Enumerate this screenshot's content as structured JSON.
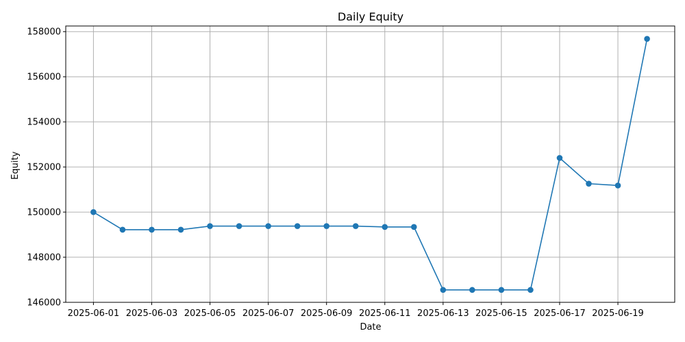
{
  "chart_data": {
    "type": "line",
    "title": "Daily Equity",
    "xlabel": "Date",
    "ylabel": "Equity",
    "grid": true,
    "ylim": [
      146000,
      158250
    ],
    "y_ticks": [
      146000,
      148000,
      150000,
      152000,
      154000,
      156000,
      158000
    ],
    "x_ticks": [
      "2025-06-01",
      "2025-06-03",
      "2025-06-05",
      "2025-06-07",
      "2025-06-09",
      "2025-06-11",
      "2025-06-13",
      "2025-06-15",
      "2025-06-17",
      "2025-06-19"
    ],
    "colors": {
      "series": "#1f77b4"
    },
    "series": [
      {
        "x": [
          "2025-06-01",
          "2025-06-02",
          "2025-06-03",
          "2025-06-04",
          "2025-06-05",
          "2025-06-06",
          "2025-06-07",
          "2025-06-08",
          "2025-06-09",
          "2025-06-10",
          "2025-06-11",
          "2025-06-12",
          "2025-06-13",
          "2025-06-14",
          "2025-06-15",
          "2025-06-16",
          "2025-06-17",
          "2025-06-18",
          "2025-06-19",
          "2025-06-20"
        ],
        "values": [
          150000,
          149220,
          149220,
          149220,
          149380,
          149380,
          149380,
          149380,
          149380,
          149380,
          149340,
          149340,
          146550,
          146550,
          146550,
          146550,
          152400,
          151260,
          151180,
          157680
        ]
      }
    ]
  }
}
